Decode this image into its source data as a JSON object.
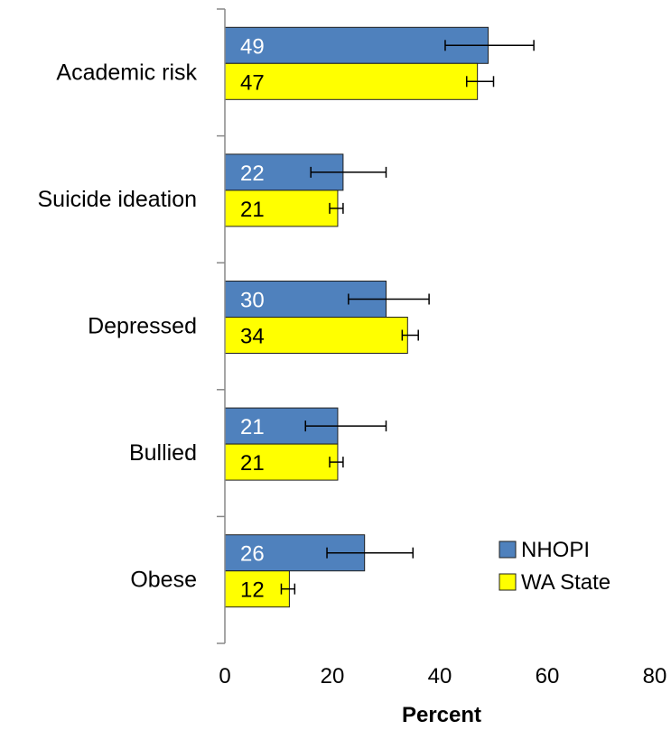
{
  "chart_data": {
    "type": "bar",
    "orientation": "horizontal",
    "categories": [
      "Academic risk",
      "Suicide ideation",
      "Depressed",
      "Bullied",
      "Obese"
    ],
    "series": [
      {
        "name": "NHOPI",
        "color": "#4F81BD",
        "label_color": "#ffffff",
        "values": [
          49,
          22,
          30,
          21,
          26
        ],
        "labels": [
          "49",
          "22",
          "30",
          "21",
          "26"
        ],
        "error_low": [
          41,
          16,
          23,
          15,
          19
        ],
        "error_high": [
          57.5,
          30,
          38,
          30,
          35
        ]
      },
      {
        "name": "WA State",
        "color": "#FFFF00",
        "label_color": "#000000",
        "values": [
          47,
          21,
          34,
          21,
          12
        ],
        "labels": [
          "47",
          "21",
          "34",
          "21",
          "12"
        ],
        "error_low": [
          45,
          19.5,
          33,
          19.5,
          10.5
        ],
        "error_high": [
          50,
          22,
          36,
          22,
          13
        ]
      }
    ],
    "xlim": [
      0,
      80
    ],
    "xticks": [
      "0",
      "20",
      "40",
      "60",
      "80"
    ],
    "xlabel": "Percent",
    "ylabel": "",
    "title": "",
    "grid": false,
    "legend_position": "bottom-right"
  }
}
